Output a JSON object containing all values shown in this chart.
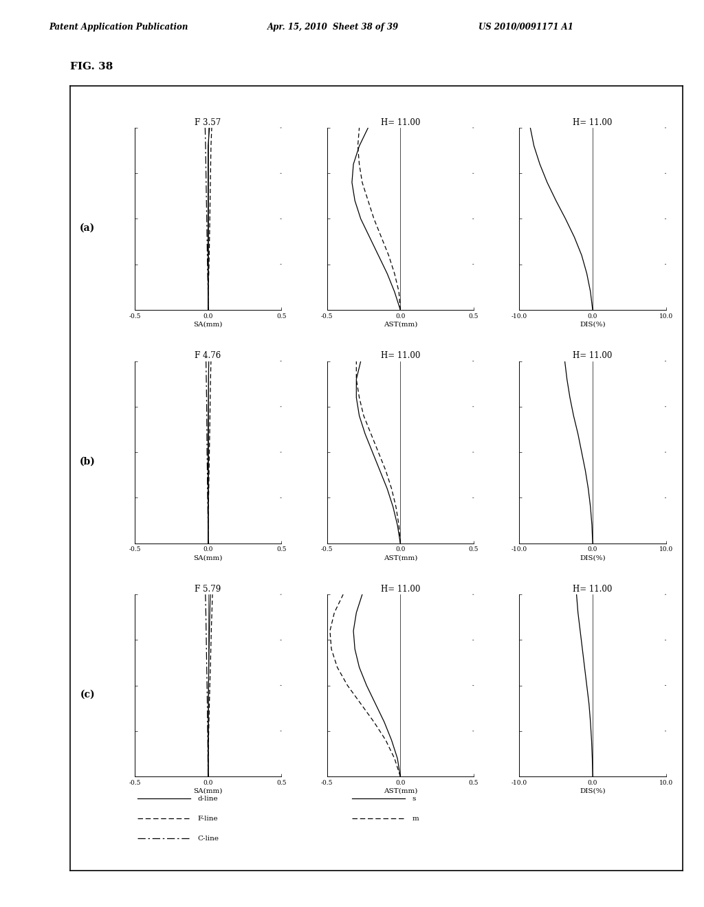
{
  "header_left": "Patent Application Publication",
  "header_mid": "Apr. 15, 2010  Sheet 38 of 39",
  "header_right": "US 2010/0091171 A1",
  "fig_label": "FIG. 38",
  "rows": [
    {
      "label": "(a)",
      "sa_title": "F 3.57",
      "ast_title": "H= 11.00",
      "dis_title": "H= 11.00",
      "sa": {
        "d_line": [
          [
            0.0,
            0.0,
            0.0,
            0.0,
            0.0,
            0.0,
            0.0,
            0.0,
            0.0,
            0.0,
            0.01
          ],
          [
            0.0,
            0.1,
            0.2,
            0.3,
            0.4,
            0.5,
            0.6,
            0.7,
            0.8,
            0.9,
            1.0
          ]
        ],
        "f_line": [
          [
            0.0,
            0.0,
            0.005,
            0.008,
            0.01,
            0.012,
            0.014,
            0.016,
            0.018,
            0.02,
            0.025
          ],
          [
            0.0,
            0.1,
            0.2,
            0.3,
            0.4,
            0.5,
            0.6,
            0.7,
            0.8,
            0.9,
            1.0
          ]
        ],
        "c_line": [
          [
            0.0,
            0.0,
            -0.003,
            -0.005,
            -0.007,
            -0.009,
            -0.011,
            -0.013,
            -0.015,
            -0.017,
            -0.02
          ],
          [
            0.0,
            0.1,
            0.2,
            0.3,
            0.4,
            0.5,
            0.6,
            0.7,
            0.8,
            0.9,
            1.0
          ]
        ],
        "xlim": [
          -0.5,
          0.5
        ],
        "xlabel": "SA(mm)"
      },
      "ast": {
        "s_line": [
          [
            0.0,
            -0.04,
            -0.09,
            -0.15,
            -0.21,
            -0.27,
            -0.31,
            -0.33,
            -0.32,
            -0.28,
            -0.22
          ],
          [
            0.0,
            0.1,
            0.2,
            0.3,
            0.4,
            0.5,
            0.6,
            0.7,
            0.8,
            0.9,
            1.0
          ]
        ],
        "m_line": [
          [
            0.0,
            -0.01,
            -0.04,
            -0.08,
            -0.13,
            -0.18,
            -0.22,
            -0.26,
            -0.28,
            -0.29,
            -0.28
          ],
          [
            0.0,
            0.1,
            0.2,
            0.3,
            0.4,
            0.5,
            0.6,
            0.7,
            0.8,
            0.9,
            1.0
          ]
        ],
        "xlim": [
          -0.5,
          0.5
        ],
        "xlabel": "AST(mm)"
      },
      "dis": {
        "line": [
          [
            0.0,
            -0.3,
            -0.8,
            -1.5,
            -2.5,
            -3.7,
            -5.0,
            -6.2,
            -7.2,
            -8.0,
            -8.5
          ],
          [
            0.0,
            0.1,
            0.2,
            0.3,
            0.4,
            0.5,
            0.6,
            0.7,
            0.8,
            0.9,
            1.0
          ]
        ],
        "xlim": [
          -10.0,
          10.0
        ],
        "xlabel": "DIS(%)"
      }
    },
    {
      "label": "(b)",
      "sa_title": "F 4.76",
      "ast_title": "H= 11.00",
      "dis_title": "H= 11.00",
      "sa": {
        "d_line": [
          [
            0.0,
            0.0,
            0.0,
            0.0,
            0.0,
            0.0,
            0.0,
            0.001,
            0.002,
            0.003,
            0.005
          ],
          [
            0.0,
            0.1,
            0.2,
            0.3,
            0.4,
            0.5,
            0.6,
            0.7,
            0.8,
            0.9,
            1.0
          ]
        ],
        "f_line": [
          [
            0.0,
            0.0,
            0.002,
            0.005,
            0.007,
            0.009,
            0.011,
            0.013,
            0.015,
            0.017,
            0.02
          ],
          [
            0.0,
            0.1,
            0.2,
            0.3,
            0.4,
            0.5,
            0.6,
            0.7,
            0.8,
            0.9,
            1.0
          ]
        ],
        "c_line": [
          [
            0.0,
            0.0,
            -0.002,
            -0.004,
            -0.005,
            -0.007,
            -0.008,
            -0.009,
            -0.01,
            -0.012,
            -0.014
          ],
          [
            0.0,
            0.1,
            0.2,
            0.3,
            0.4,
            0.5,
            0.6,
            0.7,
            0.8,
            0.9,
            1.0
          ]
        ],
        "xlim": [
          -0.5,
          0.5
        ],
        "xlabel": "SA(mm)"
      },
      "ast": {
        "s_line": [
          [
            0.0,
            -0.02,
            -0.05,
            -0.09,
            -0.14,
            -0.19,
            -0.24,
            -0.28,
            -0.3,
            -0.3,
            -0.27
          ],
          [
            0.0,
            0.1,
            0.2,
            0.3,
            0.4,
            0.5,
            0.6,
            0.7,
            0.8,
            0.9,
            1.0
          ]
        ],
        "m_line": [
          [
            0.0,
            -0.01,
            -0.03,
            -0.06,
            -0.1,
            -0.15,
            -0.2,
            -0.25,
            -0.28,
            -0.3,
            -0.3
          ],
          [
            0.0,
            0.1,
            0.2,
            0.3,
            0.4,
            0.5,
            0.6,
            0.7,
            0.8,
            0.9,
            1.0
          ]
        ],
        "xlim": [
          -0.5,
          0.5
        ],
        "xlabel": "AST(mm)"
      },
      "dis": {
        "line": [
          [
            0.0,
            -0.1,
            -0.3,
            -0.6,
            -1.0,
            -1.5,
            -2.0,
            -2.6,
            -3.1,
            -3.5,
            -3.8
          ],
          [
            0.0,
            0.1,
            0.2,
            0.3,
            0.4,
            0.5,
            0.6,
            0.7,
            0.8,
            0.9,
            1.0
          ]
        ],
        "xlim": [
          -10.0,
          10.0
        ],
        "xlabel": "DIS(%)"
      }
    },
    {
      "label": "(c)",
      "sa_title": "F 5.79",
      "ast_title": "H= 11.00",
      "dis_title": "H= 11.00",
      "sa": {
        "d_line": [
          [
            0.0,
            0.0,
            0.0,
            0.001,
            0.002,
            0.003,
            0.005,
            0.007,
            0.009,
            0.012,
            0.015
          ],
          [
            0.0,
            0.1,
            0.2,
            0.3,
            0.4,
            0.5,
            0.6,
            0.7,
            0.8,
            0.9,
            1.0
          ]
        ],
        "f_line": [
          [
            0.0,
            0.001,
            0.003,
            0.006,
            0.009,
            0.012,
            0.016,
            0.019,
            0.022,
            0.026,
            0.03
          ],
          [
            0.0,
            0.1,
            0.2,
            0.3,
            0.4,
            0.5,
            0.6,
            0.7,
            0.8,
            0.9,
            1.0
          ]
        ],
        "c_line": [
          [
            0.0,
            -0.001,
            -0.002,
            -0.004,
            -0.005,
            -0.007,
            -0.009,
            -0.011,
            -0.013,
            -0.015,
            -0.018
          ],
          [
            0.0,
            0.1,
            0.2,
            0.3,
            0.4,
            0.5,
            0.6,
            0.7,
            0.8,
            0.9,
            1.0
          ]
        ],
        "xlim": [
          -0.5,
          0.5
        ],
        "xlabel": "SA(mm)"
      },
      "ast": {
        "s_line": [
          [
            0.0,
            -0.02,
            -0.06,
            -0.11,
            -0.17,
            -0.23,
            -0.28,
            -0.31,
            -0.32,
            -0.3,
            -0.26
          ],
          [
            0.0,
            0.1,
            0.2,
            0.3,
            0.4,
            0.5,
            0.6,
            0.7,
            0.8,
            0.9,
            1.0
          ]
        ],
        "m_line": [
          [
            0.0,
            -0.04,
            -0.1,
            -0.18,
            -0.27,
            -0.36,
            -0.43,
            -0.47,
            -0.48,
            -0.45,
            -0.39
          ],
          [
            0.0,
            0.1,
            0.2,
            0.3,
            0.4,
            0.5,
            0.6,
            0.7,
            0.8,
            0.9,
            1.0
          ]
        ],
        "xlim": [
          -0.5,
          0.5
        ],
        "xlabel": "AST(mm)"
      },
      "dis": {
        "line": [
          [
            0.0,
            -0.05,
            -0.15,
            -0.3,
            -0.5,
            -0.8,
            -1.1,
            -1.4,
            -1.7,
            -2.0,
            -2.2
          ],
          [
            0.0,
            0.1,
            0.2,
            0.3,
            0.4,
            0.5,
            0.6,
            0.7,
            0.8,
            0.9,
            1.0
          ]
        ],
        "xlim": [
          -10.0,
          10.0
        ],
        "xlabel": "DIS(%)"
      }
    }
  ],
  "legend": {
    "sa_entries": [
      {
        "label": "d-line",
        "style": "solid"
      },
      {
        "label": "F-line",
        "style": "dashed"
      },
      {
        "label": "C-line",
        "style": "dashdot"
      }
    ],
    "ast_entries": [
      {
        "label": "s",
        "style": "solid"
      },
      {
        "label": "m",
        "style": "dashed"
      }
    ]
  },
  "bg_color": "#ffffff",
  "line_color": "#000000",
  "box_color": "#000000"
}
